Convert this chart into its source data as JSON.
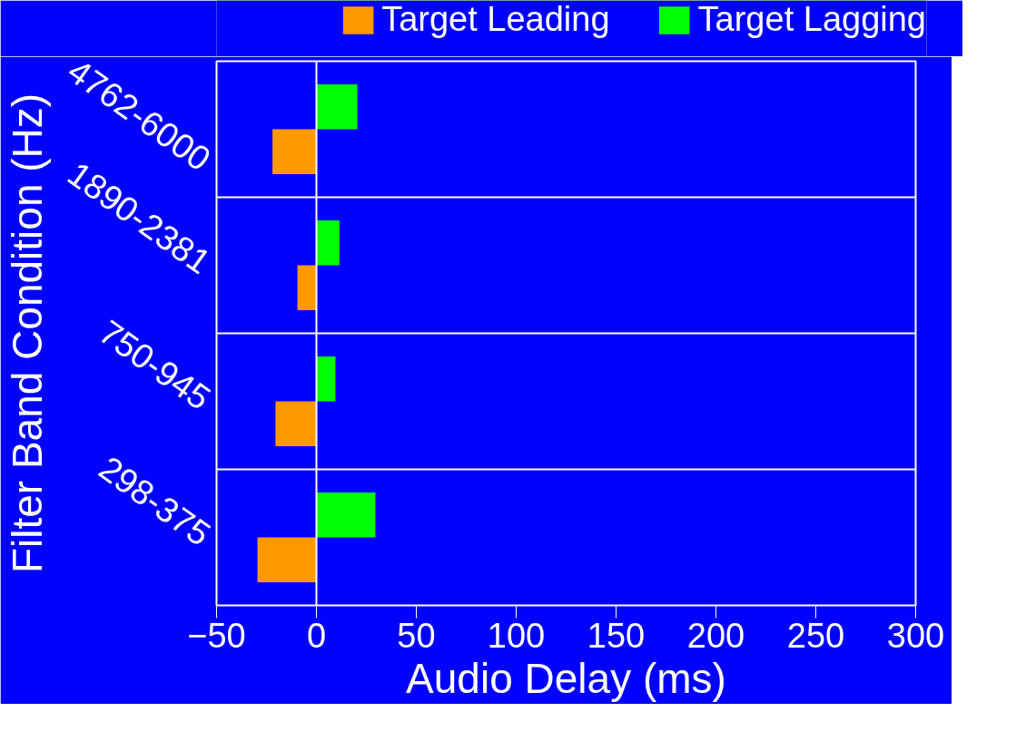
{
  "chart_data": {
    "type": "bar",
    "orientation": "horizontal",
    "xlabel": "Audio Delay (ms)",
    "ylabel": "Filter Band Condition (Hz)",
    "categories": [
      "4762-6000",
      "1890-2381",
      "750-945",
      "298-375"
    ],
    "series": [
      {
        "name": "Target Leading",
        "color": "#ff9900",
        "values": [
          -22,
          -9.5,
          -20.5,
          -29.5
        ]
      },
      {
        "name": "Target Lagging",
        "color": "#00ff00",
        "values": [
          20.5,
          11.5,
          9.5,
          29.5
        ]
      }
    ],
    "xlim": [
      -50,
      300
    ],
    "xticks": [
      -50,
      0,
      50,
      100,
      150,
      200,
      250,
      300
    ],
    "ref_lines": [
      {
        "axis": "x",
        "value": 0,
        "color": "#ffffff"
      }
    ],
    "grid": "y",
    "legend": "top"
  }
}
